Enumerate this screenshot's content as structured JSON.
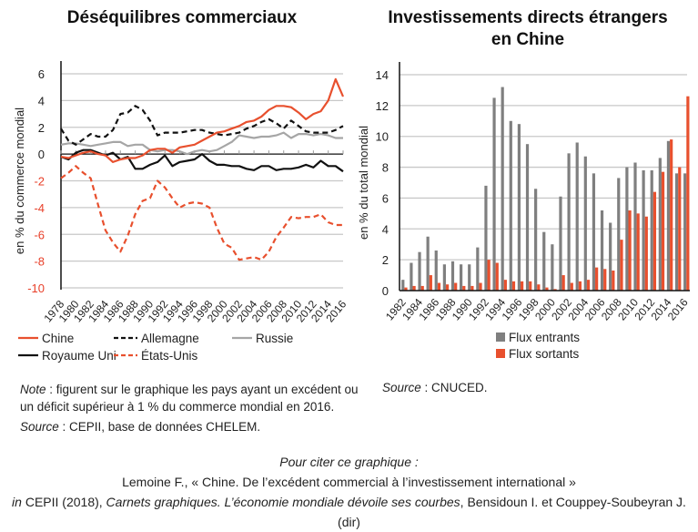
{
  "titles": {
    "left": "Déséquilibres commerciaux",
    "right_line1": "Investissements directs étrangers",
    "right_line2": "en Chine"
  },
  "chart_data": [
    {
      "type": "line",
      "title": "Déséquilibres commerciaux",
      "xlabel": "",
      "ylabel": "en % du commerce mondial",
      "ylim": [
        -10,
        6
      ],
      "yticks": [
        6,
        4,
        2,
        0,
        -2,
        -4,
        -6,
        -8,
        -10
      ],
      "grid": true,
      "legend": "bottom",
      "x": [
        1978,
        1979,
        1980,
        1981,
        1982,
        1983,
        1984,
        1985,
        1986,
        1987,
        1988,
        1989,
        1990,
        1991,
        1992,
        1993,
        1994,
        1995,
        1996,
        1997,
        1998,
        1999,
        2000,
        2001,
        2002,
        2003,
        2004,
        2005,
        2006,
        2007,
        2008,
        2009,
        2010,
        2011,
        2012,
        2013,
        2014,
        2015,
        2016
      ],
      "xtick_labels": [
        "1978",
        "1980",
        "1982",
        "1984",
        "1986",
        "1988",
        "1990",
        "1992",
        "1994",
        "1996",
        "1998",
        "2000",
        "2002",
        "2004",
        "2006",
        "2008",
        "2010",
        "2012",
        "2014",
        "2016"
      ],
      "series": [
        {
          "name": "Chine",
          "color": "#e8502e",
          "dash": false,
          "values": [
            -0.2,
            -0.3,
            -0.1,
            0.1,
            0.2,
            0.0,
            -0.1,
            -0.6,
            -0.4,
            -0.3,
            -0.3,
            -0.1,
            0.3,
            0.4,
            0.4,
            0.1,
            0.5,
            0.6,
            0.7,
            1.0,
            1.3,
            1.6,
            1.7,
            1.9,
            2.1,
            2.4,
            2.5,
            2.8,
            3.3,
            3.6,
            3.6,
            3.5,
            3.1,
            2.6,
            3.0,
            3.2,
            4.0,
            5.6,
            4.3
          ]
        },
        {
          "name": "Allemagne",
          "color": "#111111",
          "dash": true,
          "values": [
            1.9,
            1.0,
            0.7,
            1.1,
            1.5,
            1.3,
            1.3,
            1.8,
            3.0,
            3.1,
            3.6,
            3.3,
            2.5,
            1.4,
            1.6,
            1.6,
            1.6,
            1.7,
            1.8,
            1.8,
            1.6,
            1.5,
            1.4,
            1.5,
            1.6,
            1.9,
            2.1,
            2.4,
            2.6,
            2.3,
            1.9,
            2.5,
            2.1,
            1.7,
            1.6,
            1.6,
            1.6,
            1.8,
            2.1
          ]
        },
        {
          "name": "Russie",
          "color": "#a6a6a6",
          "dash": false,
          "values": [
            0.7,
            0.8,
            0.8,
            0.7,
            0.6,
            0.7,
            0.8,
            0.9,
            0.9,
            0.6,
            0.7,
            0.7,
            0.3,
            0.2,
            0.3,
            0.3,
            0.2,
            0.0,
            0.2,
            0.3,
            0.2,
            0.3,
            0.6,
            0.9,
            1.4,
            1.3,
            1.2,
            1.3,
            1.3,
            1.4,
            1.6,
            1.2,
            1.5,
            1.5,
            1.4,
            1.5,
            1.4,
            1.2,
            1.2
          ]
        },
        {
          "name": "Royaume Uni",
          "color": "#111111",
          "dash": false,
          "values": [
            -0.2,
            -0.4,
            0.1,
            0.3,
            0.3,
            0.1,
            -0.1,
            0.1,
            -0.4,
            -0.2,
            -1.1,
            -1.1,
            -0.8,
            -0.6,
            -0.1,
            -0.9,
            -0.6,
            -0.5,
            -0.4,
            0.0,
            -0.5,
            -0.8,
            -0.8,
            -0.9,
            -0.9,
            -1.1,
            -1.2,
            -0.9,
            -0.9,
            -1.2,
            -1.1,
            -1.1,
            -1.0,
            -0.8,
            -1.0,
            -0.5,
            -0.9,
            -0.9,
            -1.3
          ]
        },
        {
          "name": "États-Unis",
          "color": "#e8502e",
          "dash": true,
          "values": [
            -1.8,
            -1.4,
            -0.9,
            -1.4,
            -1.8,
            -3.8,
            -5.7,
            -6.6,
            -7.3,
            -6.1,
            -4.5,
            -3.5,
            -3.3,
            -2.0,
            -2.5,
            -3.3,
            -4.0,
            -3.7,
            -3.6,
            -3.7,
            -4.0,
            -5.5,
            -6.7,
            -7.0,
            -7.9,
            -7.8,
            -7.7,
            -7.9,
            -7.3,
            -6.2,
            -5.5,
            -4.7,
            -4.8,
            -4.7,
            -4.7,
            -4.5,
            -5.1,
            -5.3,
            -5.3
          ]
        }
      ]
    },
    {
      "type": "bar",
      "title": "Investissements directs étrangers en Chine",
      "xlabel": "",
      "ylabel": "en % du total mondial",
      "ylim": [
        0,
        14
      ],
      "yticks": [
        14,
        12,
        10,
        8,
        6,
        4,
        2,
        0
      ],
      "grid": true,
      "legend": "bottom",
      "categories": [
        1982,
        1983,
        1984,
        1985,
        1986,
        1987,
        1988,
        1989,
        1990,
        1991,
        1992,
        1993,
        1994,
        1995,
        1996,
        1997,
        1998,
        1999,
        2000,
        2001,
        2002,
        2003,
        2004,
        2005,
        2006,
        2007,
        2008,
        2009,
        2010,
        2011,
        2012,
        2013,
        2014,
        2015,
        2016
      ],
      "xtick_labels": [
        "1982",
        "1984",
        "1986",
        "1988",
        "1990",
        "1992",
        "1994",
        "1996",
        "1998",
        "2000",
        "2002",
        "2004",
        "2006",
        "2008",
        "2010",
        "2012",
        "2014",
        "2016"
      ],
      "series": [
        {
          "name": "Flux entrants",
          "color": "#7f7f7f",
          "values": [
            0.7,
            1.8,
            2.5,
            3.5,
            2.6,
            1.7,
            1.9,
            1.7,
            1.7,
            2.8,
            6.8,
            12.5,
            13.2,
            11.0,
            10.8,
            9.5,
            6.6,
            3.8,
            3.0,
            6.1,
            8.9,
            9.6,
            8.7,
            7.6,
            5.2,
            4.4,
            7.3,
            8.0,
            8.3,
            7.8,
            7.8,
            8.6,
            9.7,
            7.6,
            7.6
          ]
        },
        {
          "name": "Flux sortants",
          "color": "#e8502e",
          "values": [
            0.2,
            0.3,
            0.3,
            1.0,
            0.5,
            0.4,
            0.5,
            0.3,
            0.3,
            0.5,
            2.0,
            1.8,
            0.7,
            0.6,
            0.6,
            0.6,
            0.4,
            0.2,
            0.1,
            1.0,
            0.5,
            0.6,
            0.7,
            1.5,
            1.4,
            1.3,
            3.3,
            5.2,
            5.0,
            4.8,
            6.4,
            7.7,
            9.8,
            8.0,
            12.6
          ]
        }
      ]
    }
  ],
  "legend_left": [
    "Chine",
    "Allemagne",
    "Russie",
    "Royaume Uni",
    "États-Unis"
  ],
  "legend_right": [
    "Flux entrants",
    "Flux sortants"
  ],
  "notes": {
    "note_label": "Note",
    "note_text_1": " : figurent sur le graphique les pays ayant un excédent ou",
    "note_text_2": "un déficit supérieur à 1 % du commerce mondial en 2016.",
    "source_label": "Source",
    "source_left_text": " : CEPII, base de données CHELEM.",
    "source_right_text": " : CNUCED."
  },
  "citation": {
    "line1": "Pour citer ce graphique :",
    "line2": "Lemoine F., « Chine. De l’excédent commercial à l’investissement international »",
    "line3_in": "in",
    "line3_a": " CEPII (2018), ",
    "line3_italic": "Carnets graphiques. L’économie mondiale dévoile ses courbes",
    "line3_b": ", Bensidoun I. et Couppey-Soubeyran J. (dir)"
  }
}
